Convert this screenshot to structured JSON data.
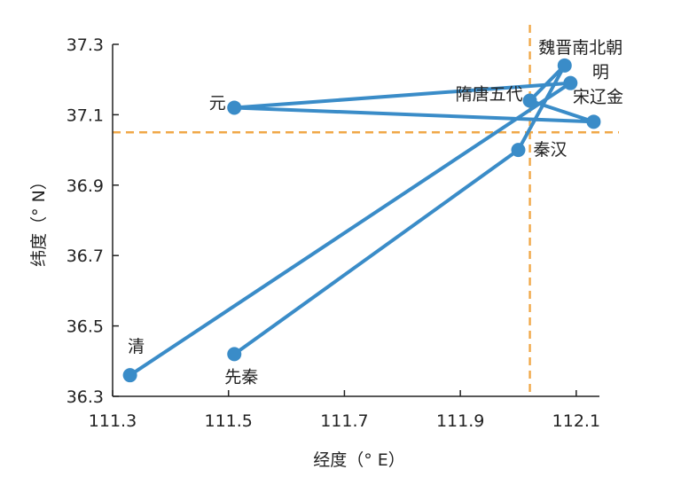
{
  "chart_data": {
    "type": "line",
    "xlabel": "经度（° E）",
    "ylabel": "纬度（° N）",
    "xlim": [
      111.3,
      112.14
    ],
    "ylim": [
      36.3,
      37.3
    ],
    "xticks": [
      "111.3",
      "111.5",
      "111.7",
      "111.9",
      "112.1"
    ],
    "yticks": [
      "36.3",
      "36.5",
      "36.7",
      "36.9",
      "37.1",
      "37.3"
    ],
    "reference_lines": {
      "x": 112.02,
      "y": 37.05
    },
    "series": [
      {
        "color": "#3a8cc8",
        "points": [
          {
            "label": "先秦",
            "x": 111.51,
            "y": 36.42
          },
          {
            "label": "秦汉",
            "x": 112.0,
            "y": 37.0
          },
          {
            "label": "魏晋南北朝",
            "x": 112.08,
            "y": 37.24
          },
          {
            "label": "隋唐五代",
            "x": 112.02,
            "y": 37.14
          },
          {
            "label": "宋辽金",
            "x": 112.13,
            "y": 37.08
          },
          {
            "label": "元",
            "x": 111.51,
            "y": 37.12
          },
          {
            "label": "明",
            "x": 112.09,
            "y": 37.19
          },
          {
            "label": "清",
            "x": 111.33,
            "y": 36.36
          }
        ]
      }
    ],
    "colors": {
      "line": "#3a8cc8",
      "reference": "#f0a848",
      "axis": "#222222"
    }
  }
}
